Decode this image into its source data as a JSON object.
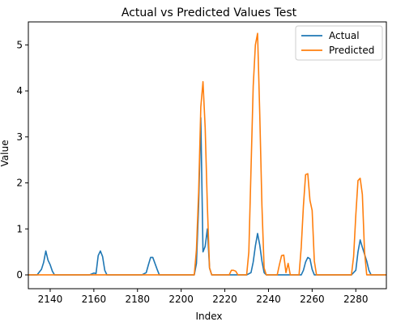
{
  "chart_data": {
    "type": "line",
    "title": "Actual vs Predicted Values Test",
    "xlabel": "Index",
    "ylabel": "Value",
    "xlim": [
      2130,
      2294
    ],
    "ylim": [
      -0.3,
      5.5
    ],
    "xticks": [
      2140,
      2160,
      2180,
      2200,
      2220,
      2240,
      2260,
      2280
    ],
    "yticks": [
      0,
      1,
      2,
      3,
      4,
      5
    ],
    "grid": false,
    "legend_position": "upper right",
    "series": [
      {
        "name": "Actual",
        "color": "#1f77b4",
        "x": [
          2130,
          2134,
          2136,
          2137,
          2138,
          2139,
          2140,
          2141,
          2142,
          2158,
          2160,
          2161,
          2162,
          2163,
          2164,
          2165,
          2166,
          2182,
          2184,
          2185,
          2186,
          2187,
          2188,
          2189,
          2190,
          2206,
          2207,
          2208,
          2209,
          2210,
          2211,
          2212,
          2213,
          2214,
          2215,
          2230,
          2232,
          2233,
          2234,
          2235,
          2236,
          2237,
          2238,
          2239,
          2255,
          2256,
          2257,
          2258,
          2259,
          2260,
          2261,
          2262,
          2278,
          2280,
          2281,
          2282,
          2283,
          2284,
          2285,
          2286,
          2287,
          2294
        ],
        "values": [
          0,
          0,
          0.12,
          0.27,
          0.52,
          0.32,
          0.22,
          0.08,
          0,
          0,
          0.04,
          0.03,
          0.42,
          0.52,
          0.4,
          0.1,
          0,
          0,
          0.05,
          0.22,
          0.38,
          0.38,
          0.25,
          0.12,
          0,
          0,
          0.25,
          1.5,
          3.42,
          0.5,
          0.62,
          1.0,
          0.15,
          0,
          0,
          0,
          0.05,
          0.28,
          0.63,
          0.9,
          0.65,
          0.3,
          0.05,
          0,
          0,
          0.1,
          0.28,
          0.38,
          0.35,
          0.12,
          0,
          0,
          0,
          0.1,
          0.5,
          0.76,
          0.6,
          0.45,
          0.3,
          0.1,
          0,
          0
        ]
      },
      {
        "name": "Predicted",
        "color": "#ff7f0e",
        "x": [
          2130,
          2206,
          2207,
          2208,
          2209,
          2210,
          2211,
          2212,
          2213,
          2214,
          2222,
          2223,
          2224,
          2225,
          2226,
          2230,
          2231,
          2232,
          2233,
          2234,
          2235,
          2236,
          2237,
          2238,
          2239,
          2244,
          2245,
          2246,
          2247,
          2248,
          2249,
          2250,
          2251,
          2252,
          2254,
          2255,
          2256,
          2257,
          2258,
          2259,
          2260,
          2261,
          2262,
          2278,
          2279,
          2280,
          2281,
          2282,
          2283,
          2284,
          2285,
          2286,
          2294
        ],
        "values": [
          0,
          0,
          0.55,
          1.8,
          3.65,
          4.2,
          3.2,
          1.5,
          0.15,
          0,
          0,
          0.1,
          0.1,
          0.08,
          0,
          0,
          0.5,
          2.3,
          4.1,
          5.0,
          5.25,
          3.5,
          1.5,
          0.15,
          0,
          0,
          0.22,
          0.42,
          0.43,
          0.05,
          0.25,
          0,
          0,
          0,
          0,
          0.6,
          1.5,
          2.18,
          2.2,
          1.62,
          1.4,
          0.3,
          0,
          0,
          0.4,
          1.3,
          2.05,
          2.1,
          1.75,
          0.5,
          0,
          0,
          0
        ]
      }
    ]
  }
}
